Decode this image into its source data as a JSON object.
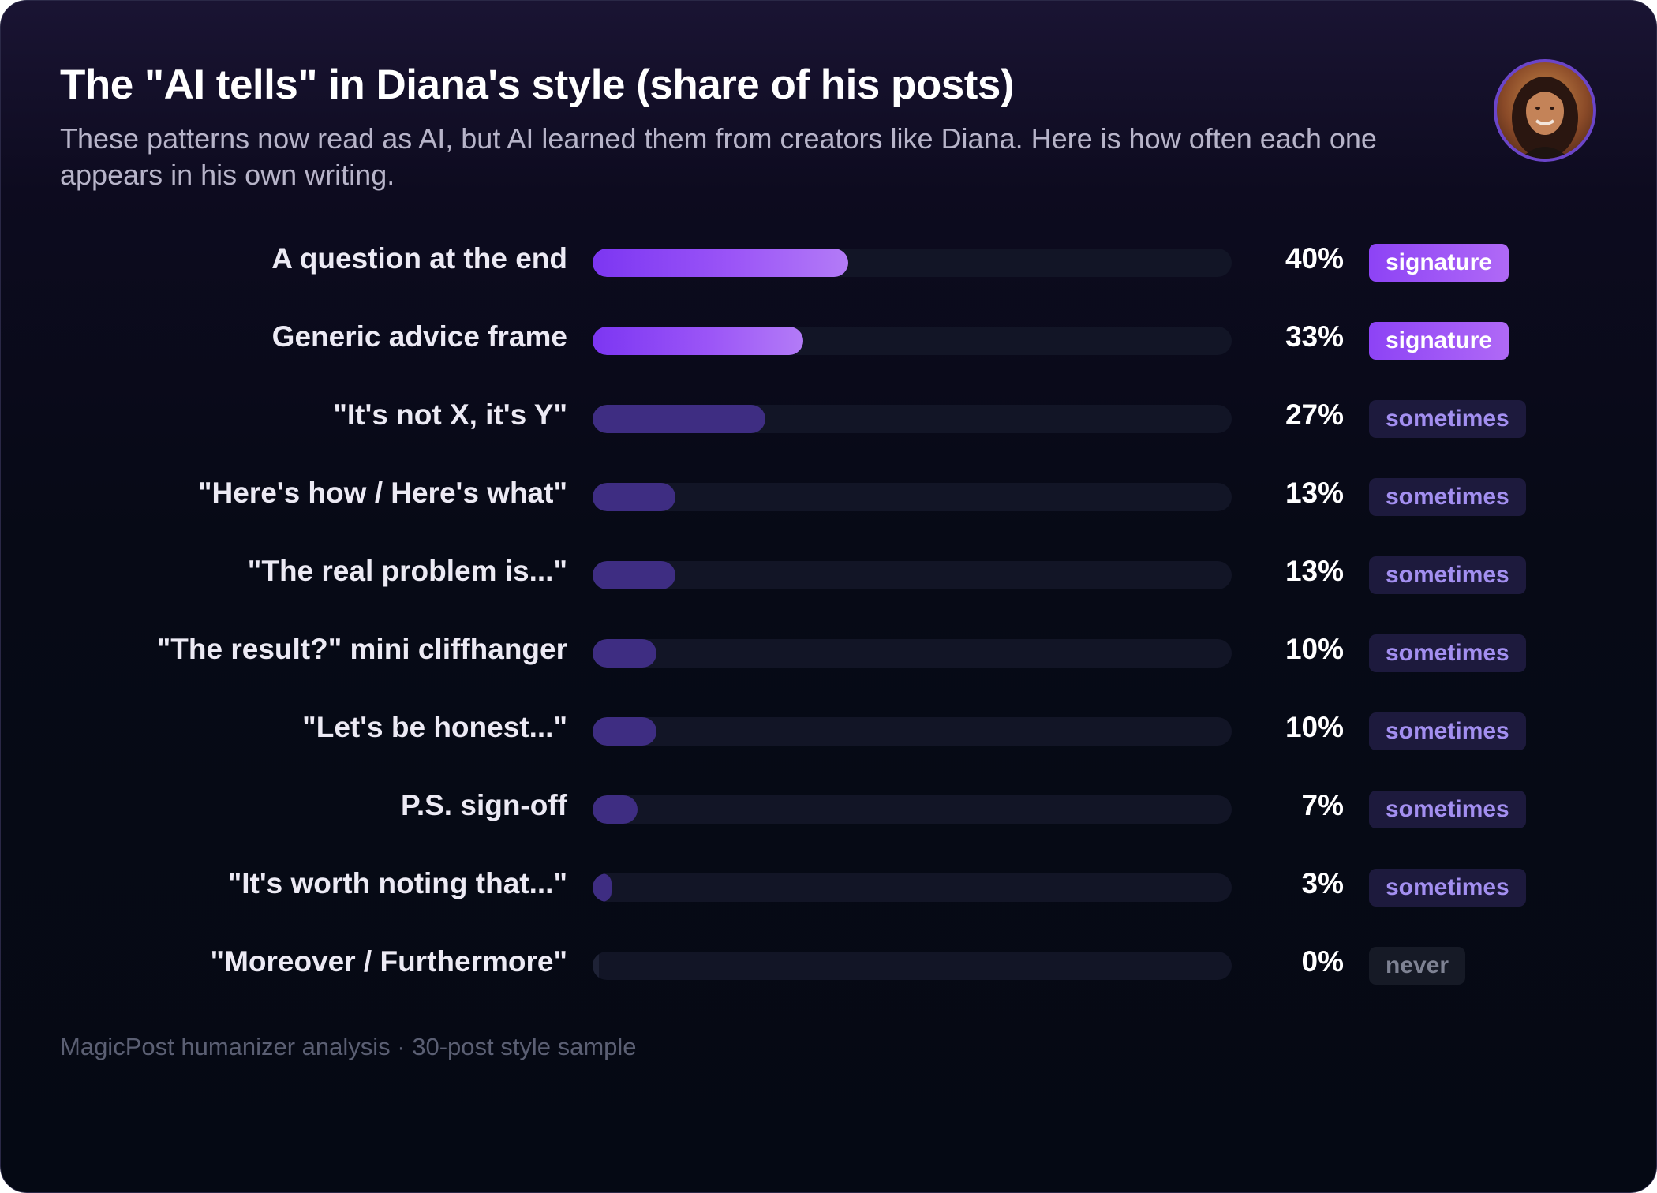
{
  "title": "The \"AI tells\" in Diana's style (share of his posts)",
  "subtitle": "These patterns now read as AI, but AI learned them from creators like Diana. Here is how often each one appears in his own writing.",
  "footer": "MagicPost humanizer analysis · 30-post style sample",
  "avatar_icon": "user-avatar",
  "colors": {
    "signature": "#9b55f7",
    "sometimes": "#3e2d82",
    "never": "#1e2236",
    "background": "#070a16"
  },
  "chart_data": {
    "type": "bar",
    "orientation": "horizontal",
    "title": "The \"AI tells\" in Diana's style (share of his posts)",
    "subtitle": "These patterns now read as AI, but AI learned them from creators like Diana. Here is how often each one appears in his own writing.",
    "xlim": [
      0,
      100
    ],
    "unit": "%",
    "grid": false,
    "rows": [
      {
        "label": "A question at the end",
        "value": 40,
        "pct_label": "40%",
        "badge": "signature",
        "tier": "sig"
      },
      {
        "label": "Generic advice frame",
        "value": 33,
        "pct_label": "33%",
        "badge": "signature",
        "tier": "sig"
      },
      {
        "label": "\"It's not X, it's Y\"",
        "value": 27,
        "pct_label": "27%",
        "badge": "sometimes",
        "tier": "some"
      },
      {
        "label": "\"Here's how / Here's what\"",
        "value": 13,
        "pct_label": "13%",
        "badge": "sometimes",
        "tier": "some"
      },
      {
        "label": "\"The real problem is...\"",
        "value": 13,
        "pct_label": "13%",
        "badge": "sometimes",
        "tier": "some"
      },
      {
        "label": "\"The result?\" mini cliffhanger",
        "value": 10,
        "pct_label": "10%",
        "badge": "sometimes",
        "tier": "some"
      },
      {
        "label": "\"Let's be honest...\"",
        "value": 10,
        "pct_label": "10%",
        "badge": "sometimes",
        "tier": "some"
      },
      {
        "label": "P.S. sign-off",
        "value": 7,
        "pct_label": "7%",
        "badge": "sometimes",
        "tier": "some"
      },
      {
        "label": "\"It's worth noting that...\"",
        "value": 3,
        "pct_label": "3%",
        "badge": "sometimes",
        "tier": "some"
      },
      {
        "label": "\"Moreover / Furthermore\"",
        "value": 0,
        "pct_label": "0%",
        "badge": "never",
        "tier": "never"
      }
    ]
  }
}
